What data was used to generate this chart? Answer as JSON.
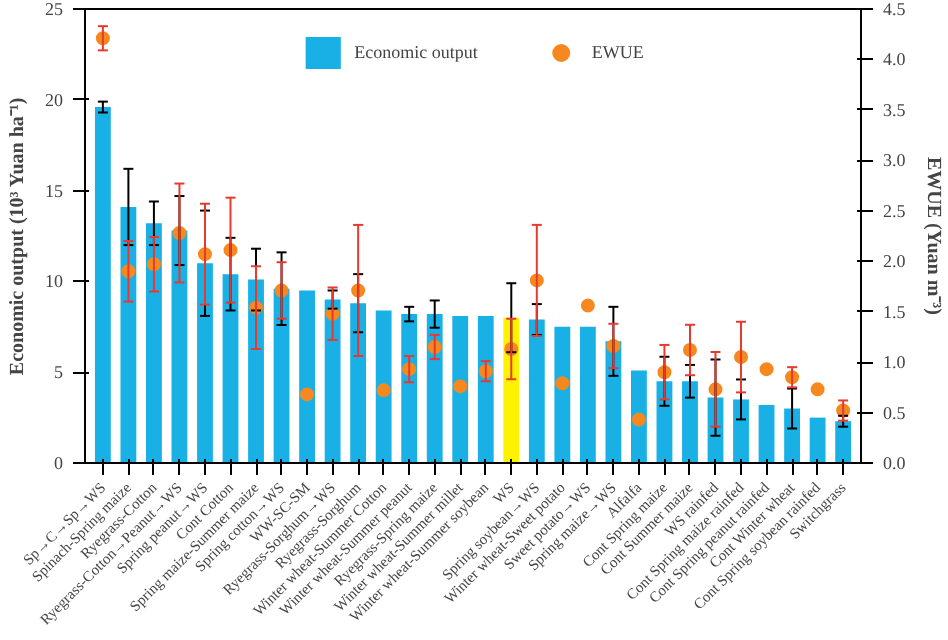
{
  "chart_data": {
    "type": "bar",
    "ylabel": "Economic output (10³ Yuan ha⁻¹)",
    "y2label": "EWUE (Yuan m⁻³)",
    "categories": [
      "Sp→C→Sp→WS",
      "Spinach-Spring maize",
      "Ryegrass-Cotton",
      "Ryegrass-Cotton→Peanut→WS",
      "Spring peanut→WS",
      "Cont Cotton",
      "Spring maize-Summer maize",
      "Spring cotton→WS",
      "WW-SC-SM",
      "Ryegrass-Sorghum→WS",
      "Ryegrass-Sorghum",
      "Winter wheat-Summer Cotton",
      "Winter wheat-Summer peanut",
      "Ryegrass-Spring maize",
      "Winter wheat-Summer millet",
      "Winter wheat-Summer soybean",
      "WS",
      "Spring soybean→WS",
      "Winter wheat-Sweet potato",
      "Sweet potato→WS",
      "Spring maize→WS",
      "Alfalfa",
      "Cont Spring maize",
      "Cont Summer maize",
      "WS rainfed",
      "Cont Spring maize rainfed",
      "Cont Spring peanut rainfed",
      "Cont Winter wheat",
      "Cont Spring soybean rainfed",
      "Switchgrass"
    ],
    "series": [
      {
        "name": "Economic output",
        "color": "#19b0e6",
        "colors": [
          null,
          null,
          null,
          null,
          null,
          null,
          null,
          null,
          null,
          null,
          null,
          null,
          null,
          null,
          null,
          null,
          "#fff200",
          null,
          null,
          null,
          null,
          null,
          null,
          null,
          null,
          null,
          null,
          null,
          null,
          null
        ],
        "values": [
          19.6,
          14.1,
          13.2,
          12.8,
          11.0,
          10.4,
          10.1,
          9.6,
          9.5,
          9.0,
          8.8,
          8.4,
          8.2,
          8.2,
          8.1,
          8.1,
          8.0,
          7.9,
          7.5,
          7.5,
          6.7,
          5.1,
          4.5,
          4.5,
          3.6,
          3.5,
          3.2,
          3.0,
          2.5,
          2.3
        ],
        "errors": [
          0.3,
          2.1,
          1.2,
          1.9,
          2.9,
          2.0,
          1.7,
          2.0,
          null,
          0.5,
          1.6,
          null,
          0.4,
          0.75,
          null,
          null,
          1.9,
          0.85,
          null,
          null,
          1.9,
          null,
          1.35,
          0.9,
          2.1,
          1.1,
          null,
          1.1,
          null,
          0.3
        ]
      },
      {
        "name": "EWUE",
        "type": "scatter",
        "axis": "y2",
        "color": "#f5891f",
        "values": [
          4.21,
          1.9,
          1.97,
          2.28,
          2.07,
          2.11,
          1.54,
          1.71,
          0.68,
          1.48,
          1.71,
          0.72,
          0.93,
          1.15,
          0.76,
          0.91,
          1.13,
          1.81,
          0.79,
          1.56,
          1.16,
          0.43,
          0.9,
          1.12,
          0.73,
          1.05,
          0.93,
          0.85,
          0.73,
          0.52
        ],
        "errors": [
          0.12,
          0.3,
          0.27,
          0.49,
          0.5,
          0.52,
          0.41,
          0.28,
          null,
          0.26,
          0.65,
          null,
          0.13,
          0.12,
          null,
          0.1,
          0.3,
          0.55,
          null,
          null,
          0.22,
          null,
          0.27,
          0.25,
          0.37,
          0.35,
          null,
          0.1,
          null,
          0.1
        ]
      }
    ],
    "ylim": [
      0,
      25
    ],
    "yticks": [
      0,
      5,
      10,
      15,
      20,
      25
    ],
    "y2lim": [
      0,
      4.5
    ],
    "y2ticks": [
      {
        "value": 0,
        "label": "0.0"
      },
      {
        "value": 0.5,
        "label": "0.5"
      },
      {
        "value": 1,
        "label": "1.0"
      },
      {
        "value": 1.5,
        "label": "1.5"
      },
      {
        "value": 2,
        "label": "2.0"
      },
      {
        "value": 2.5,
        "label": "2.5"
      },
      {
        "value": 3,
        "label": "3.0"
      },
      {
        "value": 3.5,
        "label": "3.5"
      },
      {
        "value": 4,
        "label": "4.0"
      },
      {
        "value": 4.5,
        "label": "4.5"
      }
    ],
    "legend": "top",
    "marker": "circle",
    "grid": false
  }
}
